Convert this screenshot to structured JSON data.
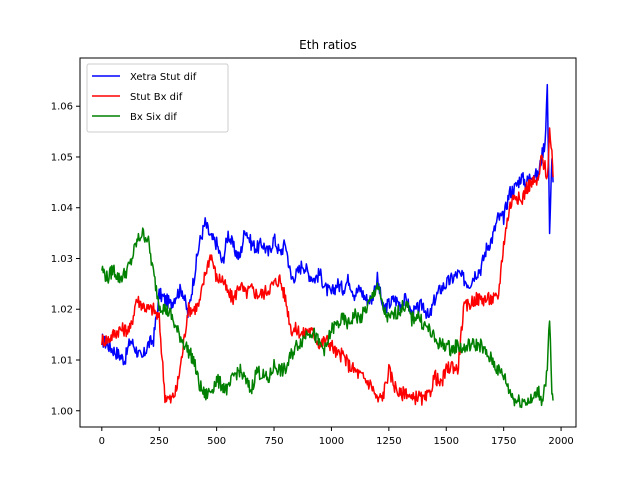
{
  "chart_data": {
    "type": "line",
    "title": "Eth ratios",
    "xlabel": "",
    "ylabel": "",
    "xlim": [
      -95,
      2065
    ],
    "ylim": [
      0.9968,
      1.0695
    ],
    "xticks": [
      0,
      250,
      500,
      750,
      1000,
      1250,
      1500,
      1750,
      2000
    ],
    "xtick_labels": [
      "0",
      "250",
      "500",
      "750",
      "1000",
      "1250",
      "1500",
      "1750",
      "2000"
    ],
    "yticks": [
      1.0,
      1.01,
      1.02,
      1.03,
      1.04,
      1.05,
      1.06
    ],
    "ytick_labels": [
      "1.00",
      "1.01",
      "1.02",
      "1.03",
      "1.04",
      "1.05",
      "1.06"
    ],
    "grid": false,
    "legend_position": "top-left",
    "series": [
      {
        "name": "Xetra Stut dif",
        "color": "#0000ff",
        "x": [
          0,
          25,
          50,
          75,
          100,
          125,
          150,
          175,
          200,
          225,
          250,
          275,
          300,
          325,
          350,
          375,
          400,
          425,
          450,
          475,
          500,
          525,
          550,
          575,
          600,
          625,
          650,
          675,
          700,
          725,
          750,
          775,
          800,
          825,
          850,
          875,
          900,
          925,
          950,
          975,
          1000,
          1025,
          1050,
          1075,
          1100,
          1125,
          1150,
          1175,
          1200,
          1225,
          1250,
          1275,
          1300,
          1325,
          1350,
          1375,
          1400,
          1425,
          1450,
          1475,
          1500,
          1525,
          1550,
          1575,
          1600,
          1625,
          1650,
          1675,
          1700,
          1725,
          1750,
          1775,
          1800,
          1825,
          1850,
          1875,
          1900,
          1915,
          1930,
          1940,
          1950,
          1960,
          1965
        ],
        "y": [
          1.014,
          1.013,
          1.012,
          1.011,
          1.01,
          1.014,
          1.012,
          1.01,
          1.013,
          1.014,
          1.023,
          1.022,
          1.021,
          1.023,
          1.024,
          1.019,
          1.026,
          1.033,
          1.037,
          1.034,
          1.033,
          1.029,
          1.035,
          1.032,
          1.03,
          1.036,
          1.033,
          1.032,
          1.033,
          1.031,
          1.034,
          1.031,
          1.033,
          1.026,
          1.027,
          1.029,
          1.027,
          1.026,
          1.027,
          1.024,
          1.023,
          1.025,
          1.024,
          1.026,
          1.023,
          1.024,
          1.022,
          1.022,
          1.026,
          1.02,
          1.021,
          1.022,
          1.021,
          1.022,
          1.019,
          1.02,
          1.021,
          1.018,
          1.022,
          1.024,
          1.025,
          1.026,
          1.027,
          1.026,
          1.025,
          1.027,
          1.028,
          1.032,
          1.034,
          1.038,
          1.038,
          1.043,
          1.044,
          1.046,
          1.045,
          1.047,
          1.046,
          1.05,
          1.053,
          1.064,
          1.036,
          1.05,
          1.045
        ]
      },
      {
        "name": "Stut Bx dif",
        "color": "#ff0000",
        "x": [
          0,
          25,
          50,
          75,
          100,
          125,
          150,
          175,
          200,
          225,
          250,
          275,
          300,
          325,
          350,
          375,
          400,
          425,
          450,
          475,
          500,
          525,
          550,
          575,
          600,
          625,
          650,
          675,
          700,
          725,
          750,
          775,
          800,
          825,
          850,
          875,
          900,
          925,
          950,
          975,
          1000,
          1025,
          1050,
          1075,
          1100,
          1125,
          1150,
          1175,
          1200,
          1225,
          1250,
          1275,
          1300,
          1325,
          1350,
          1375,
          1400,
          1425,
          1450,
          1475,
          1500,
          1525,
          1550,
          1575,
          1600,
          1625,
          1650,
          1675,
          1700,
          1725,
          1750,
          1775,
          1800,
          1825,
          1850,
          1875,
          1900,
          1915,
          1930,
          1940,
          1950,
          1960,
          1965
        ],
        "y": [
          1.014,
          1.014,
          1.015,
          1.016,
          1.016,
          1.016,
          1.022,
          1.021,
          1.02,
          1.02,
          1.018,
          1.003,
          1.002,
          1.004,
          1.011,
          1.02,
          1.02,
          1.021,
          1.027,
          1.031,
          1.026,
          1.026,
          1.023,
          1.022,
          1.025,
          1.023,
          1.024,
          1.023,
          1.023,
          1.024,
          1.025,
          1.026,
          1.022,
          1.016,
          1.016,
          1.015,
          1.016,
          1.015,
          1.013,
          1.014,
          1.013,
          1.011,
          1.011,
          1.009,
          1.008,
          1.007,
          1.006,
          1.005,
          1.002,
          1.003,
          1.008,
          1.005,
          1.003,
          1.004,
          1.002,
          1.003,
          1.002,
          1.003,
          1.007,
          1.005,
          1.008,
          1.009,
          1.008,
          1.02,
          1.021,
          1.022,
          1.022,
          1.022,
          1.022,
          1.022,
          1.033,
          1.04,
          1.043,
          1.041,
          1.044,
          1.045,
          1.045,
          1.05,
          1.048,
          1.046,
          1.055,
          1.05,
          1.046
        ]
      },
      {
        "name": "Bx Six dif",
        "color": "#008000",
        "x": [
          0,
          25,
          50,
          75,
          100,
          125,
          150,
          175,
          200,
          225,
          250,
          275,
          300,
          325,
          350,
          375,
          400,
          425,
          450,
          475,
          500,
          525,
          550,
          575,
          600,
          625,
          650,
          675,
          700,
          725,
          750,
          775,
          800,
          825,
          850,
          875,
          900,
          925,
          950,
          975,
          1000,
          1025,
          1050,
          1075,
          1100,
          1125,
          1150,
          1175,
          1200,
          1225,
          1250,
          1275,
          1300,
          1325,
          1350,
          1375,
          1400,
          1425,
          1450,
          1475,
          1500,
          1525,
          1550,
          1575,
          1600,
          1625,
          1650,
          1675,
          1700,
          1725,
          1750,
          1775,
          1800,
          1825,
          1850,
          1875,
          1900,
          1915,
          1930,
          1940,
          1950,
          1960,
          1965
        ],
        "y": [
          1.028,
          1.026,
          1.028,
          1.026,
          1.027,
          1.029,
          1.033,
          1.035,
          1.034,
          1.027,
          1.021,
          1.02,
          1.019,
          1.016,
          1.014,
          1.012,
          1.01,
          1.005,
          1.003,
          1.004,
          1.006,
          1.005,
          1.004,
          1.007,
          1.008,
          1.006,
          1.004,
          1.008,
          1.007,
          1.006,
          1.009,
          1.008,
          1.008,
          1.011,
          1.013,
          1.014,
          1.016,
          1.015,
          1.013,
          1.012,
          1.016,
          1.017,
          1.018,
          1.017,
          1.019,
          1.018,
          1.02,
          1.022,
          1.025,
          1.02,
          1.018,
          1.019,
          1.02,
          1.021,
          1.018,
          1.019,
          1.017,
          1.016,
          1.014,
          1.013,
          1.013,
          1.012,
          1.013,
          1.012,
          1.013,
          1.013,
          1.013,
          1.011,
          1.01,
          1.008,
          1.007,
          1.004,
          1.002,
          1.002,
          1.002,
          1.002,
          1.004,
          1.002,
          1.005,
          1.008,
          1.018,
          1.003,
          1.002
        ]
      }
    ]
  }
}
